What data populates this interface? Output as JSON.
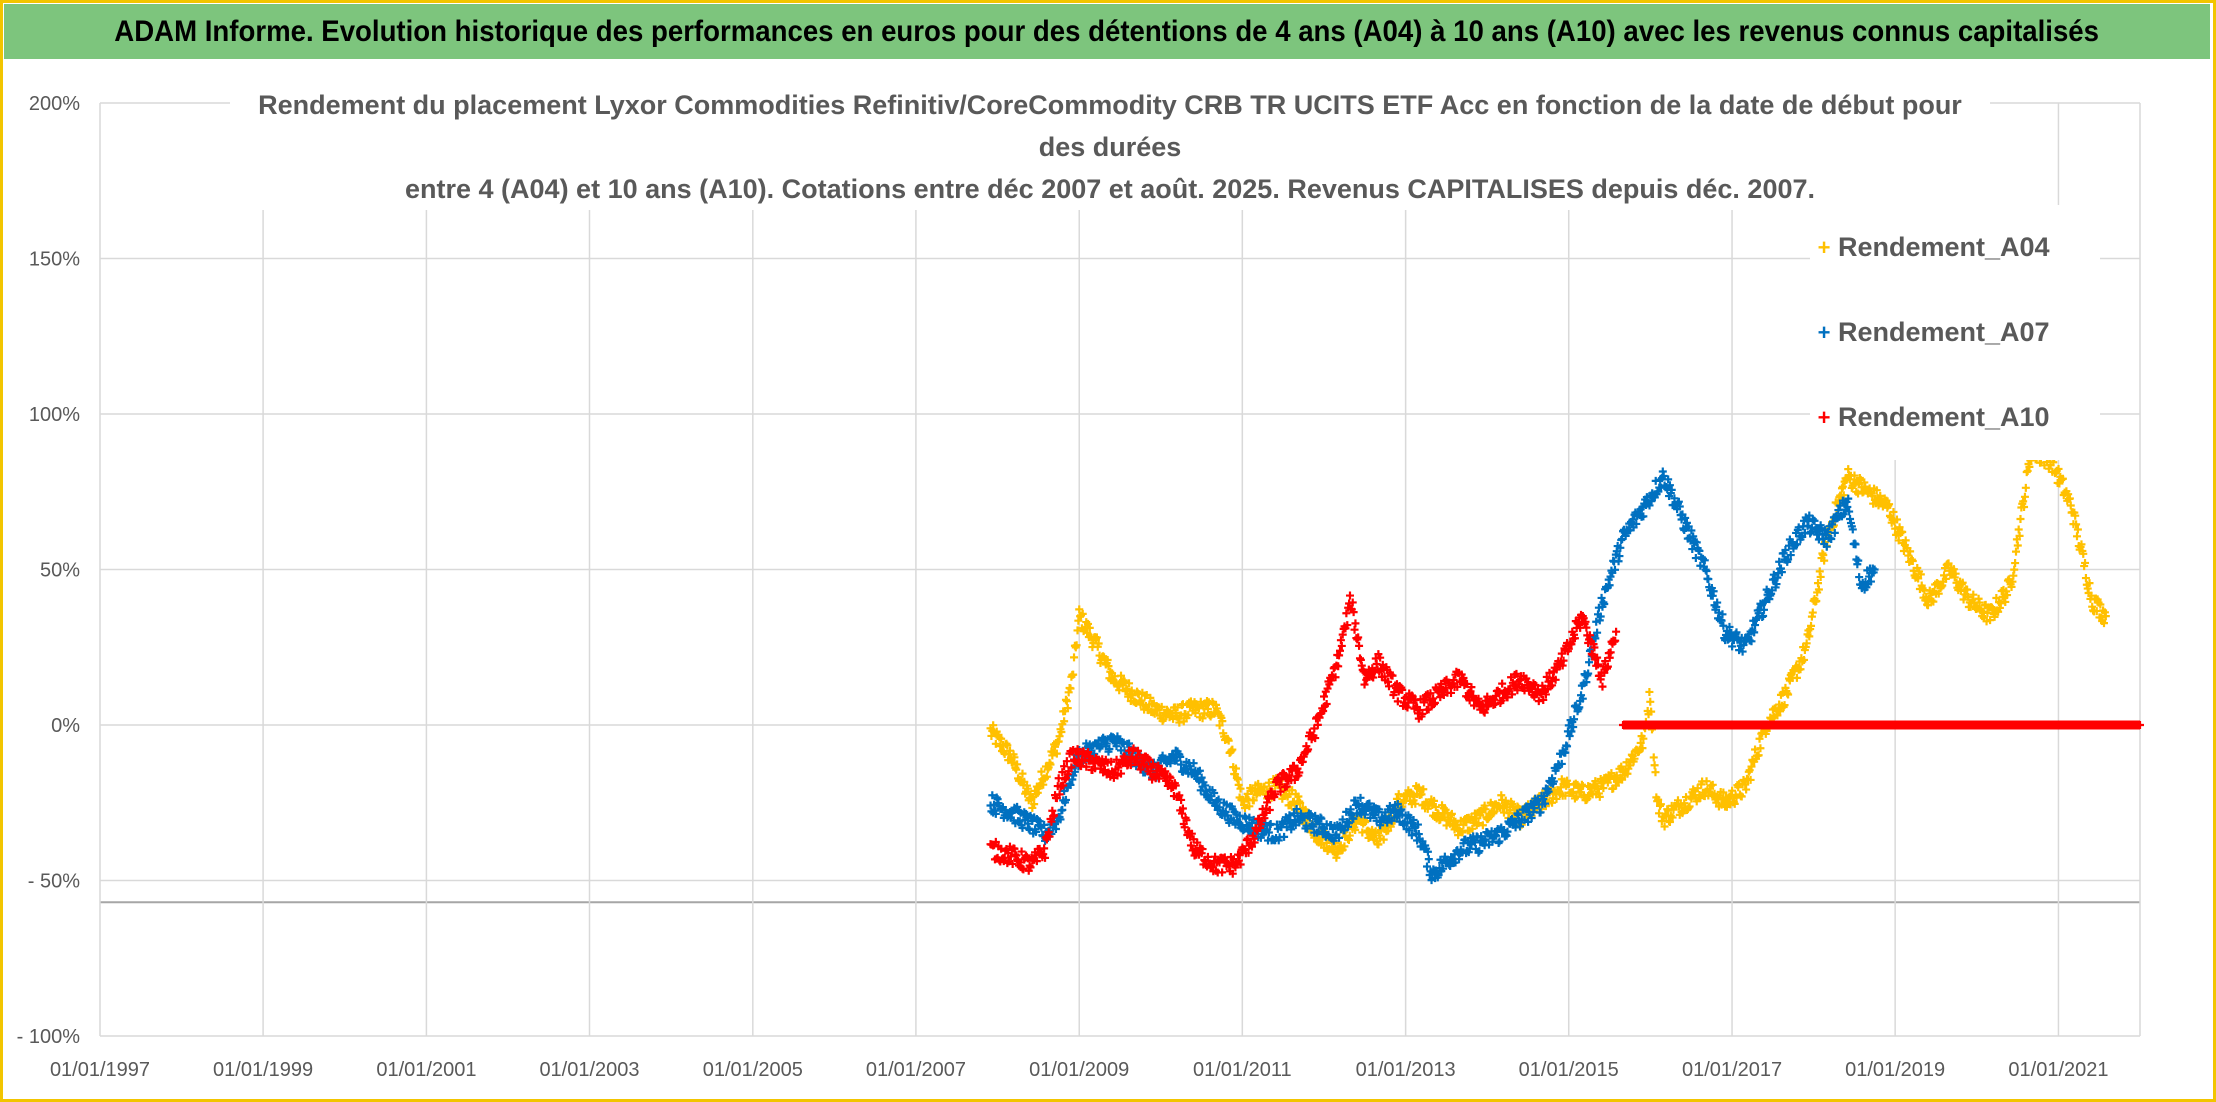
{
  "banner": {
    "title": "ADAM Informe. Evolution historique des performances en euros pour des détentions de 4 ans (A04) à 10 ans (A10) avec les revenus connus capitalisés"
  },
  "colors": {
    "banner_bg": "#7dc57d",
    "frame": "#f2c500",
    "A04": "#ffc000",
    "A07": "#0070c0",
    "A10": "#ff0000",
    "grid": "#d9d9d9",
    "text": "#595959"
  },
  "chart_data": {
    "type": "scatter",
    "title_lines": [
      "Rendement du placement Lyxor Commodities Refinitiv/CoreCommodity CRB TR UCITS ETF Acc en fonction de la date de début pour des durées",
      "entre 4 (A04) et 10 ans (A10). Cotations entre déc 2007 et août. 2025. Revenus CAPITALISES depuis déc. 2007."
    ],
    "marker": "+",
    "xlim": [
      "1997-01-01",
      "2022-01-01"
    ],
    "ylim": [
      -100,
      200
    ],
    "grid": true,
    "legend_position": "top-right",
    "x_ticks": [
      "01/01/1997",
      "01/01/1999",
      "01/01/2001",
      "01/01/2003",
      "01/01/2005",
      "01/01/2007",
      "01/01/2009",
      "01/01/2011",
      "01/01/2013",
      "01/01/2015",
      "01/01/2017",
      "01/01/2019",
      "01/01/2021"
    ],
    "y_ticks": [
      {
        "value": 200,
        "label": "200%"
      },
      {
        "value": 150,
        "label": "150%"
      },
      {
        "value": 100,
        "label": "100%"
      },
      {
        "value": 50,
        "label": "50%"
      },
      {
        "value": 0,
        "label": "0%"
      },
      {
        "value": -50,
        "label": "- 50%"
      },
      {
        "value": -100,
        "label": "- 100%"
      }
    ],
    "series": [
      {
        "name": "Rendement_A04",
        "color": "#ffc000",
        "points": [
          [
            "2007-12-01",
            -2
          ],
          [
            "2008-03-01",
            -10
          ],
          [
            "2008-06-01",
            -25
          ],
          [
            "2008-08-01",
            -15
          ],
          [
            "2008-10-01",
            -5
          ],
          [
            "2008-12-01",
            15
          ],
          [
            "2009-01-01",
            35
          ],
          [
            "2009-03-01",
            28
          ],
          [
            "2009-06-01",
            15
          ],
          [
            "2009-09-01",
            10
          ],
          [
            "2009-12-01",
            5
          ],
          [
            "2010-03-01",
            3
          ],
          [
            "2010-06-01",
            5
          ],
          [
            "2010-09-01",
            5
          ],
          [
            "2010-11-01",
            -5
          ],
          [
            "2011-01-01",
            -25
          ],
          [
            "2011-03-01",
            -22
          ],
          [
            "2011-06-01",
            -20
          ],
          [
            "2011-09-01",
            -25
          ],
          [
            "2011-12-01",
            -35
          ],
          [
            "2012-03-01",
            -40
          ],
          [
            "2012-06-01",
            -30
          ],
          [
            "2012-09-01",
            -38
          ],
          [
            "2012-12-01",
            -25
          ],
          [
            "2013-03-01",
            -22
          ],
          [
            "2013-06-01",
            -28
          ],
          [
            "2013-09-01",
            -33
          ],
          [
            "2013-12-01",
            -30
          ],
          [
            "2014-03-01",
            -25
          ],
          [
            "2014-06-01",
            -30
          ],
          [
            "2014-09-01",
            -25
          ],
          [
            "2014-12-01",
            -20
          ],
          [
            "2015-03-01",
            -22
          ],
          [
            "2015-06-01",
            -20
          ],
          [
            "2015-09-01",
            -15
          ],
          [
            "2015-12-01",
            -5
          ],
          [
            "2016-01-01",
            10
          ],
          [
            "2016-02-01",
            -25
          ],
          [
            "2016-03-01",
            -30
          ],
          [
            "2016-06-01",
            -25
          ],
          [
            "2016-09-01",
            -20
          ],
          [
            "2016-12-01",
            -25
          ],
          [
            "2017-03-01",
            -20
          ],
          [
            "2017-06-01",
            0
          ],
          [
            "2017-09-01",
            10
          ],
          [
            "2017-12-01",
            25
          ],
          [
            "2018-03-01",
            60
          ],
          [
            "2018-06-01",
            80
          ],
          [
            "2018-09-01",
            75
          ],
          [
            "2018-12-01",
            70
          ],
          [
            "2019-03-01",
            55
          ],
          [
            "2019-06-01",
            40
          ],
          [
            "2019-09-01",
            50
          ],
          [
            "2019-12-01",
            40
          ],
          [
            "2020-03-01",
            35
          ],
          [
            "2020-06-01",
            45
          ],
          [
            "2020-09-01",
            88
          ],
          [
            "2020-12-01",
            85
          ],
          [
            "2021-03-01",
            70
          ],
          [
            "2021-06-01",
            40
          ],
          [
            "2021-08-01",
            35
          ]
        ]
      },
      {
        "name": "Rendement_A07",
        "color": "#0070c0",
        "points": [
          [
            "2007-12-01",
            -25
          ],
          [
            "2008-03-01",
            -28
          ],
          [
            "2008-06-01",
            -32
          ],
          [
            "2008-08-01",
            -35
          ],
          [
            "2008-10-01",
            -30
          ],
          [
            "2008-12-01",
            -15
          ],
          [
            "2009-01-01",
            -10
          ],
          [
            "2009-03-01",
            -8
          ],
          [
            "2009-06-01",
            -5
          ],
          [
            "2009-09-01",
            -10
          ],
          [
            "2009-12-01",
            -15
          ],
          [
            "2010-03-01",
            -10
          ],
          [
            "2010-06-01",
            -15
          ],
          [
            "2010-09-01",
            -25
          ],
          [
            "2010-12-01",
            -30
          ],
          [
            "2011-03-01",
            -33
          ],
          [
            "2011-06-01",
            -35
          ],
          [
            "2011-09-01",
            -30
          ],
          [
            "2011-12-01",
            -32
          ],
          [
            "2012-03-01",
            -35
          ],
          [
            "2012-06-01",
            -25
          ],
          [
            "2012-09-01",
            -30
          ],
          [
            "2012-12-01",
            -28
          ],
          [
            "2013-03-01",
            -35
          ],
          [
            "2013-05-01",
            -48
          ],
          [
            "2013-09-01",
            -40
          ],
          [
            "2013-12-01",
            -38
          ],
          [
            "2014-03-01",
            -35
          ],
          [
            "2014-06-01",
            -30
          ],
          [
            "2014-09-01",
            -25
          ],
          [
            "2014-12-01",
            -10
          ],
          [
            "2015-03-01",
            10
          ],
          [
            "2015-06-01",
            40
          ],
          [
            "2015-09-01",
            60
          ],
          [
            "2015-12-01",
            70
          ],
          [
            "2016-03-01",
            80
          ],
          [
            "2016-06-01",
            65
          ],
          [
            "2016-09-01",
            50
          ],
          [
            "2016-12-01",
            30
          ],
          [
            "2017-03-01",
            25
          ],
          [
            "2017-06-01",
            40
          ],
          [
            "2017-09-01",
            55
          ],
          [
            "2017-12-01",
            65
          ],
          [
            "2018-03-01",
            60
          ],
          [
            "2018-06-01",
            72
          ],
          [
            "2018-08-01",
            45
          ],
          [
            "2018-10-01",
            50
          ]
        ]
      },
      {
        "name": "Rendement_A10",
        "color": "#ff0000",
        "points": [
          [
            "2007-12-01",
            -40
          ],
          [
            "2008-03-01",
            -42
          ],
          [
            "2008-06-01",
            -45
          ],
          [
            "2008-08-01",
            -40
          ],
          [
            "2008-10-01",
            -20
          ],
          [
            "2008-12-01",
            -10
          ],
          [
            "2009-03-01",
            -12
          ],
          [
            "2009-06-01",
            -15
          ],
          [
            "2009-09-01",
            -10
          ],
          [
            "2009-12-01",
            -15
          ],
          [
            "2010-03-01",
            -20
          ],
          [
            "2010-06-01",
            -40
          ],
          [
            "2010-09-01",
            -45
          ],
          [
            "2010-12-01",
            -45
          ],
          [
            "2011-03-01",
            -35
          ],
          [
            "2011-06-01",
            -20
          ],
          [
            "2011-09-01",
            -15
          ],
          [
            "2011-12-01",
            0
          ],
          [
            "2012-03-01",
            20
          ],
          [
            "2012-05-01",
            40
          ],
          [
            "2012-07-01",
            15
          ],
          [
            "2012-09-01",
            20
          ],
          [
            "2012-12-01",
            10
          ],
          [
            "2013-03-01",
            5
          ],
          [
            "2013-06-01",
            10
          ],
          [
            "2013-09-01",
            15
          ],
          [
            "2013-12-01",
            5
          ],
          [
            "2014-03-01",
            10
          ],
          [
            "2014-06-01",
            15
          ],
          [
            "2014-09-01",
            10
          ],
          [
            "2014-12-01",
            20
          ],
          [
            "2015-03-01",
            35
          ],
          [
            "2015-06-01",
            15
          ],
          [
            "2015-08-01",
            30
          ]
        ],
        "flat_segment": {
          "from": "2015-09-01",
          "to": "2022-01-01",
          "value": 0
        }
      }
    ]
  }
}
